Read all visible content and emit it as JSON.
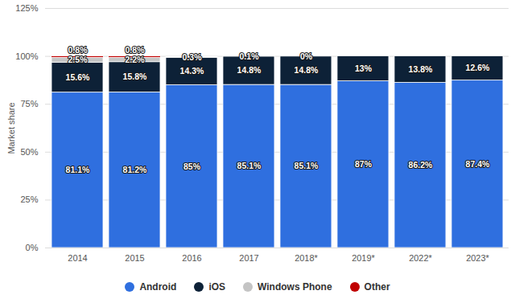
{
  "chart_data": {
    "type": "bar",
    "stacked": true,
    "data_labels": true,
    "grid": true,
    "legend": "bottom",
    "y_label": "Market share",
    "categories": [
      "2014",
      "2015",
      "2016",
      "2017",
      "2018*",
      "2019*",
      "2022*",
      "2023*"
    ],
    "ylim": [
      0,
      125
    ],
    "yticks": [
      {
        "value": 0,
        "label": "0%"
      },
      {
        "value": 25,
        "label": "25%"
      },
      {
        "value": 50,
        "label": "50%"
      },
      {
        "value": 75,
        "label": "75%"
      },
      {
        "value": 100,
        "label": "100%"
      },
      {
        "value": 125,
        "label": "125%"
      }
    ],
    "series": [
      {
        "name": "Android",
        "color": "#2f6fdf",
        "values": [
          81.1,
          81.2,
          85,
          85.1,
          85.1,
          87,
          86.2,
          87.4
        ],
        "value_labels": [
          "81.1%",
          "81.2%",
          "85%",
          "85.1%",
          "85.1%",
          "87%",
          "86.2%",
          "87.4%"
        ]
      },
      {
        "name": "iOS",
        "color": "#0d2137",
        "values": [
          15.6,
          15.8,
          14.3,
          14.8,
          14.8,
          13,
          13.8,
          12.6
        ],
        "value_labels": [
          "15.6%",
          "15.8%",
          "14.3%",
          "14.8%",
          "14.8%",
          "13%",
          "13.8%",
          "12.6%"
        ]
      },
      {
        "name": "Windows Phone",
        "color": "#c4c4c4",
        "values": [
          2.5,
          2.2,
          0.3,
          0.1,
          0,
          null,
          null,
          null
        ],
        "value_labels": [
          "2.5%",
          "2.2%",
          "0.3%",
          "0.1%",
          "0%",
          null,
          null,
          null
        ]
      },
      {
        "name": "Other",
        "color": "#c00000",
        "values": [
          0.8,
          0.8,
          null,
          null,
          null,
          null,
          null,
          null
        ],
        "value_labels": [
          "0.8%",
          "0.8%",
          null,
          null,
          null,
          null,
          null,
          null
        ]
      }
    ]
  }
}
